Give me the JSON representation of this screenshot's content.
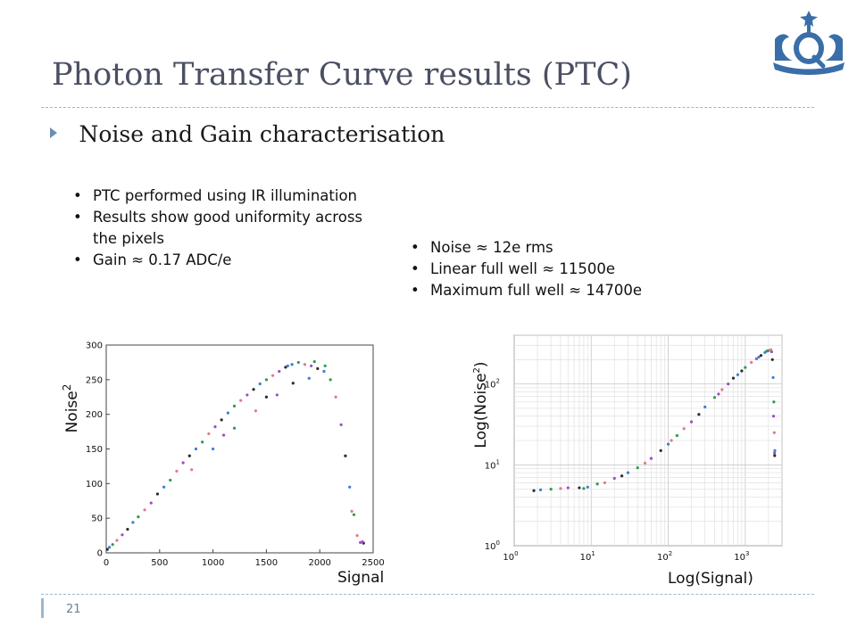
{
  "slide": {
    "title": "Photon Transfer Curve results (PTC)",
    "main_bullet": "Noise and Gain characterisation",
    "left_points": [
      "PTC performed using IR illumination",
      "Results show good uniformity across the pixels",
      "Gain ≈ 0.17 ADC/e"
    ],
    "right_points": [
      "Noise ≈ 12e rms",
      "Linear full well ≈ 11500e",
      "Maximum full well ≈ 14700e"
    ],
    "page_number": "21",
    "logo_icon": "university-crown-logo-icon"
  },
  "chart_data": [
    {
      "type": "scatter",
      "xlabel": "Signal",
      "ylabel": "Noise",
      "ylabel_superscript": "2",
      "xlim": [
        0,
        2500
      ],
      "ylim": [
        0,
        300
      ],
      "xticks": [
        0,
        500,
        1000,
        1500,
        2000,
        2500
      ],
      "yticks": [
        0,
        50,
        100,
        150,
        200,
        250,
        300
      ],
      "grid": false,
      "series_colors": [
        "#2b2b2b",
        "#3a7fd0",
        "#2e9c4a",
        "#e07a8a",
        "#9a4ec4"
      ],
      "points": [
        [
          10,
          5
        ],
        [
          30,
          8
        ],
        [
          60,
          12
        ],
        [
          100,
          18
        ],
        [
          150,
          26
        ],
        [
          200,
          34
        ],
        [
          250,
          44
        ],
        [
          300,
          52
        ],
        [
          360,
          62
        ],
        [
          420,
          72
        ],
        [
          480,
          85
        ],
        [
          540,
          95
        ],
        [
          600,
          105
        ],
        [
          660,
          118
        ],
        [
          720,
          130
        ],
        [
          780,
          140
        ],
        [
          840,
          150
        ],
        [
          900,
          160
        ],
        [
          960,
          172
        ],
        [
          1020,
          182
        ],
        [
          1080,
          192
        ],
        [
          1140,
          202
        ],
        [
          1200,
          212
        ],
        [
          1260,
          220
        ],
        [
          1320,
          228
        ],
        [
          1380,
          236
        ],
        [
          1440,
          244
        ],
        [
          1500,
          250
        ],
        [
          1560,
          256
        ],
        [
          1620,
          262
        ],
        [
          1680,
          268
        ],
        [
          1740,
          272
        ],
        [
          1800,
          275
        ],
        [
          1860,
          272
        ],
        [
          1920,
          270
        ],
        [
          1980,
          266
        ],
        [
          2040,
          262
        ],
        [
          2100,
          250
        ],
        [
          2150,
          225
        ],
        [
          2200,
          185
        ],
        [
          2240,
          140
        ],
        [
          2280,
          95
        ],
        [
          2320,
          55
        ],
        [
          2350,
          25
        ],
        [
          2380,
          15
        ],
        [
          2410,
          14
        ],
        [
          1000,
          150
        ],
        [
          1200,
          180
        ],
        [
          1400,
          205
        ],
        [
          1600,
          228
        ],
        [
          1750,
          245
        ],
        [
          1900,
          252
        ],
        [
          2050,
          270
        ],
        [
          800,
          120
        ],
        [
          1100,
          170
        ],
        [
          1500,
          225
        ],
        [
          1700,
          270
        ],
        [
          1950,
          276
        ],
        [
          2300,
          60
        ],
        [
          2400,
          16
        ]
      ]
    },
    {
      "type": "scatter",
      "xlabel": "Log(Signal)",
      "ylabel": "Log(Noise",
      "ylabel_superscript": "2",
      "ylabel_suffix": ")",
      "xscale": "log",
      "yscale": "log",
      "xlim": [
        1,
        3000
      ],
      "ylim": [
        1,
        400
      ],
      "xticks": [
        "10^0",
        "10^1",
        "10^2",
        "10^3"
      ],
      "yticks": [
        "10^0",
        "10^1",
        "10^2"
      ],
      "grid": true,
      "series_colors": [
        "#2b2b2b",
        "#3a7fd0",
        "#2e9c4a",
        "#e07a8a",
        "#9a4ec4"
      ],
      "points": [
        [
          1.8,
          4.8
        ],
        [
          2.2,
          4.9
        ],
        [
          3,
          5
        ],
        [
          4,
          5.1
        ],
        [
          5,
          5.2
        ],
        [
          7,
          5.2
        ],
        [
          9,
          5.3
        ],
        [
          12,
          5.8
        ],
        [
          15,
          6
        ],
        [
          20,
          6.8
        ],
        [
          25,
          7.3
        ],
        [
          30,
          8
        ],
        [
          40,
          9.2
        ],
        [
          50,
          10.5
        ],
        [
          60,
          12
        ],
        [
          80,
          15
        ],
        [
          100,
          18
        ],
        [
          130,
          23
        ],
        [
          160,
          28
        ],
        [
          200,
          34
        ],
        [
          250,
          42
        ],
        [
          300,
          52
        ],
        [
          400,
          68
        ],
        [
          500,
          85
        ],
        [
          600,
          100
        ],
        [
          700,
          118
        ],
        [
          800,
          130
        ],
        [
          1000,
          160
        ],
        [
          1200,
          185
        ],
        [
          1400,
          205
        ],
        [
          1600,
          225
        ],
        [
          1800,
          245
        ],
        [
          2000,
          258
        ],
        [
          2100,
          262
        ],
        [
          2200,
          250
        ],
        [
          2250,
          200
        ],
        [
          2300,
          120
        ],
        [
          2350,
          60
        ],
        [
          2380,
          25
        ],
        [
          2400,
          14
        ],
        [
          2410,
          13
        ],
        [
          2420,
          15
        ],
        [
          8,
          5.1
        ],
        [
          110,
          20
        ],
        [
          450,
          75
        ],
        [
          900,
          145
        ],
        [
          1500,
          215
        ],
        [
          1900,
          255
        ],
        [
          2150,
          265
        ],
        [
          2330,
          40
        ]
      ]
    }
  ]
}
